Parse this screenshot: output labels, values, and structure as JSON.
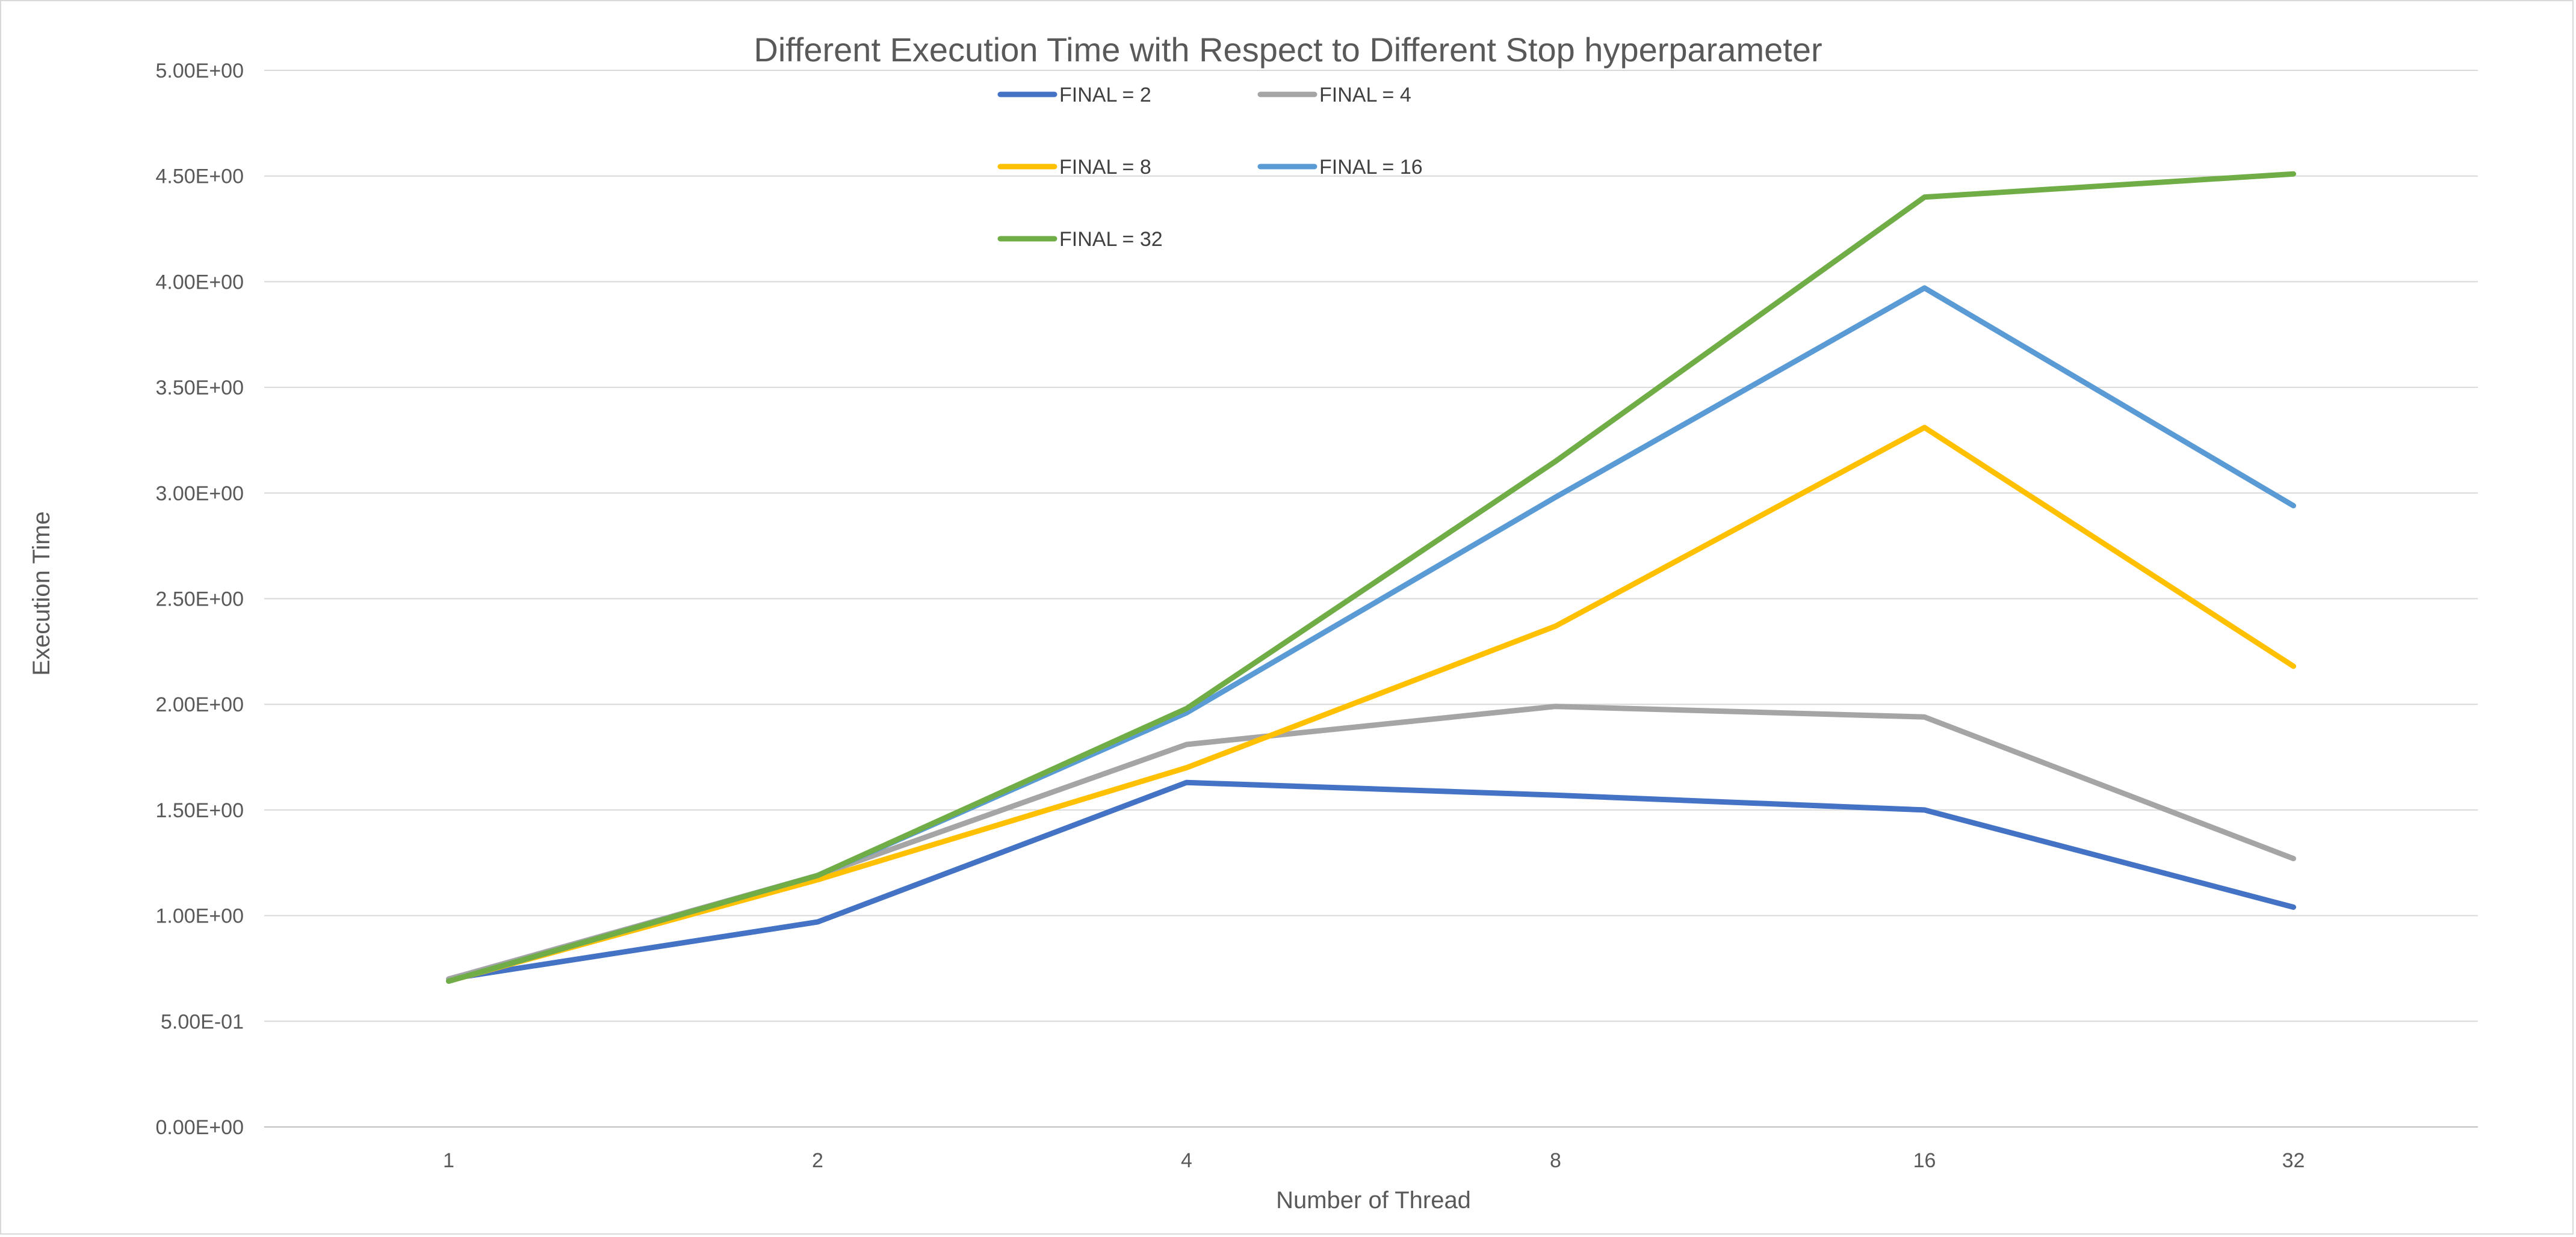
{
  "chart_data": {
    "type": "line",
    "title": "Different Execution Time with Respect to Different Stop hyperparameter",
    "xlabel": "Number of Thread",
    "ylabel": "Execution Time",
    "categories": [
      "1",
      "2",
      "4",
      "8",
      "16",
      "32"
    ],
    "ylim": [
      0,
      5
    ],
    "ytick_labels": [
      "0.00E+00",
      "5.00E-01",
      "1.00E+00",
      "1.50E+00",
      "2.00E+00",
      "2.50E+00",
      "3.00E+00",
      "3.50E+00",
      "4.00E+00",
      "4.50E+00",
      "5.00E+00"
    ],
    "grid": true,
    "legend_position": "top",
    "series": [
      {
        "name": "FINAL = 2",
        "color": "#4472C4",
        "values": [
          0.7,
          0.97,
          1.63,
          1.57,
          1.5,
          1.04
        ]
      },
      {
        "name": "FINAL = 4",
        "color": "#A5A5A5",
        "values": [
          0.7,
          1.19,
          1.81,
          1.99,
          1.94,
          1.27
        ]
      },
      {
        "name": "FINAL = 8",
        "color": "#FFC000",
        "values": [
          0.69,
          1.17,
          1.7,
          2.37,
          3.31,
          2.18
        ]
      },
      {
        "name": "FINAL = 16",
        "color": "#5B9BD5",
        "values": [
          0.69,
          1.19,
          1.96,
          2.98,
          3.97,
          2.94
        ]
      },
      {
        "name": "FINAL = 32",
        "color": "#70AD47",
        "values": [
          0.69,
          1.19,
          1.98,
          3.15,
          4.4,
          4.51
        ]
      }
    ]
  }
}
